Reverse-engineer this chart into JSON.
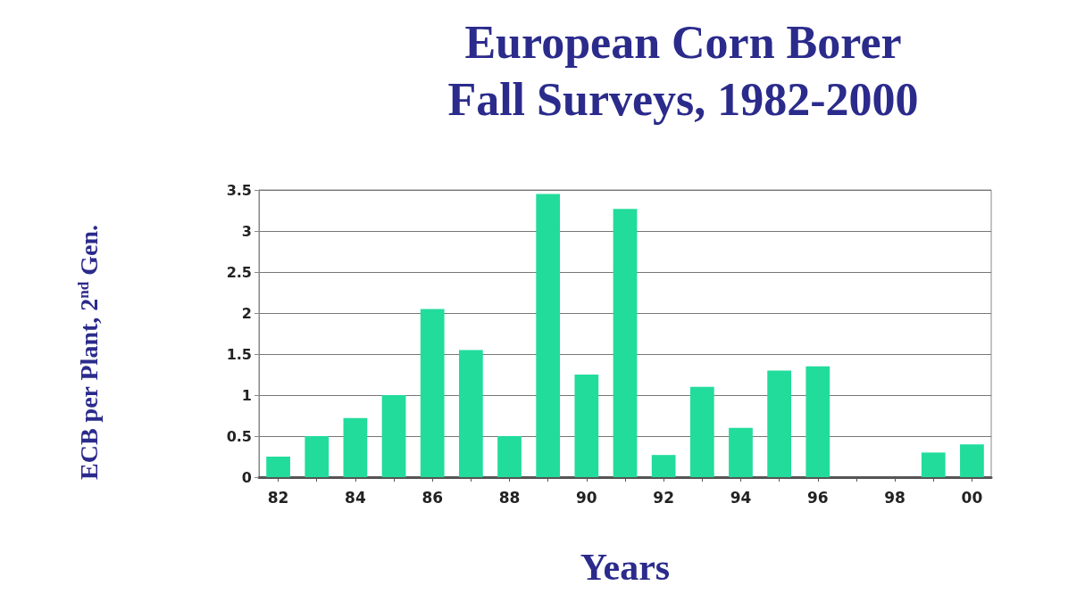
{
  "chart_data": {
    "type": "bar",
    "title": "European Corn Borer\nFall Surveys, 1982-2000",
    "xlabel": "Years",
    "ylabel": "ECB per Plant, 2$^{nd}$ Gen.",
    "categories": [
      "82",
      null,
      "84",
      null,
      "86",
      null,
      "88",
      null,
      "90",
      null,
      "92",
      null,
      "94",
      null,
      "96",
      null,
      "98",
      null,
      "00"
    ],
    "values": [
      0.25,
      0.5,
      0.72,
      1.0,
      2.05,
      1.55,
      0.5,
      3.45,
      1.25,
      3.27,
      0.27,
      1.1,
      0.6,
      1.3,
      1.35,
      0,
      0,
      0.3,
      0.4
    ],
    "color": "#22dc9c",
    "ylim": [
      0,
      3.5
    ],
    "yticks": [
      0,
      0.5,
      1,
      1.5,
      2,
      2.5,
      3,
      3.5
    ],
    "grid": "y"
  }
}
